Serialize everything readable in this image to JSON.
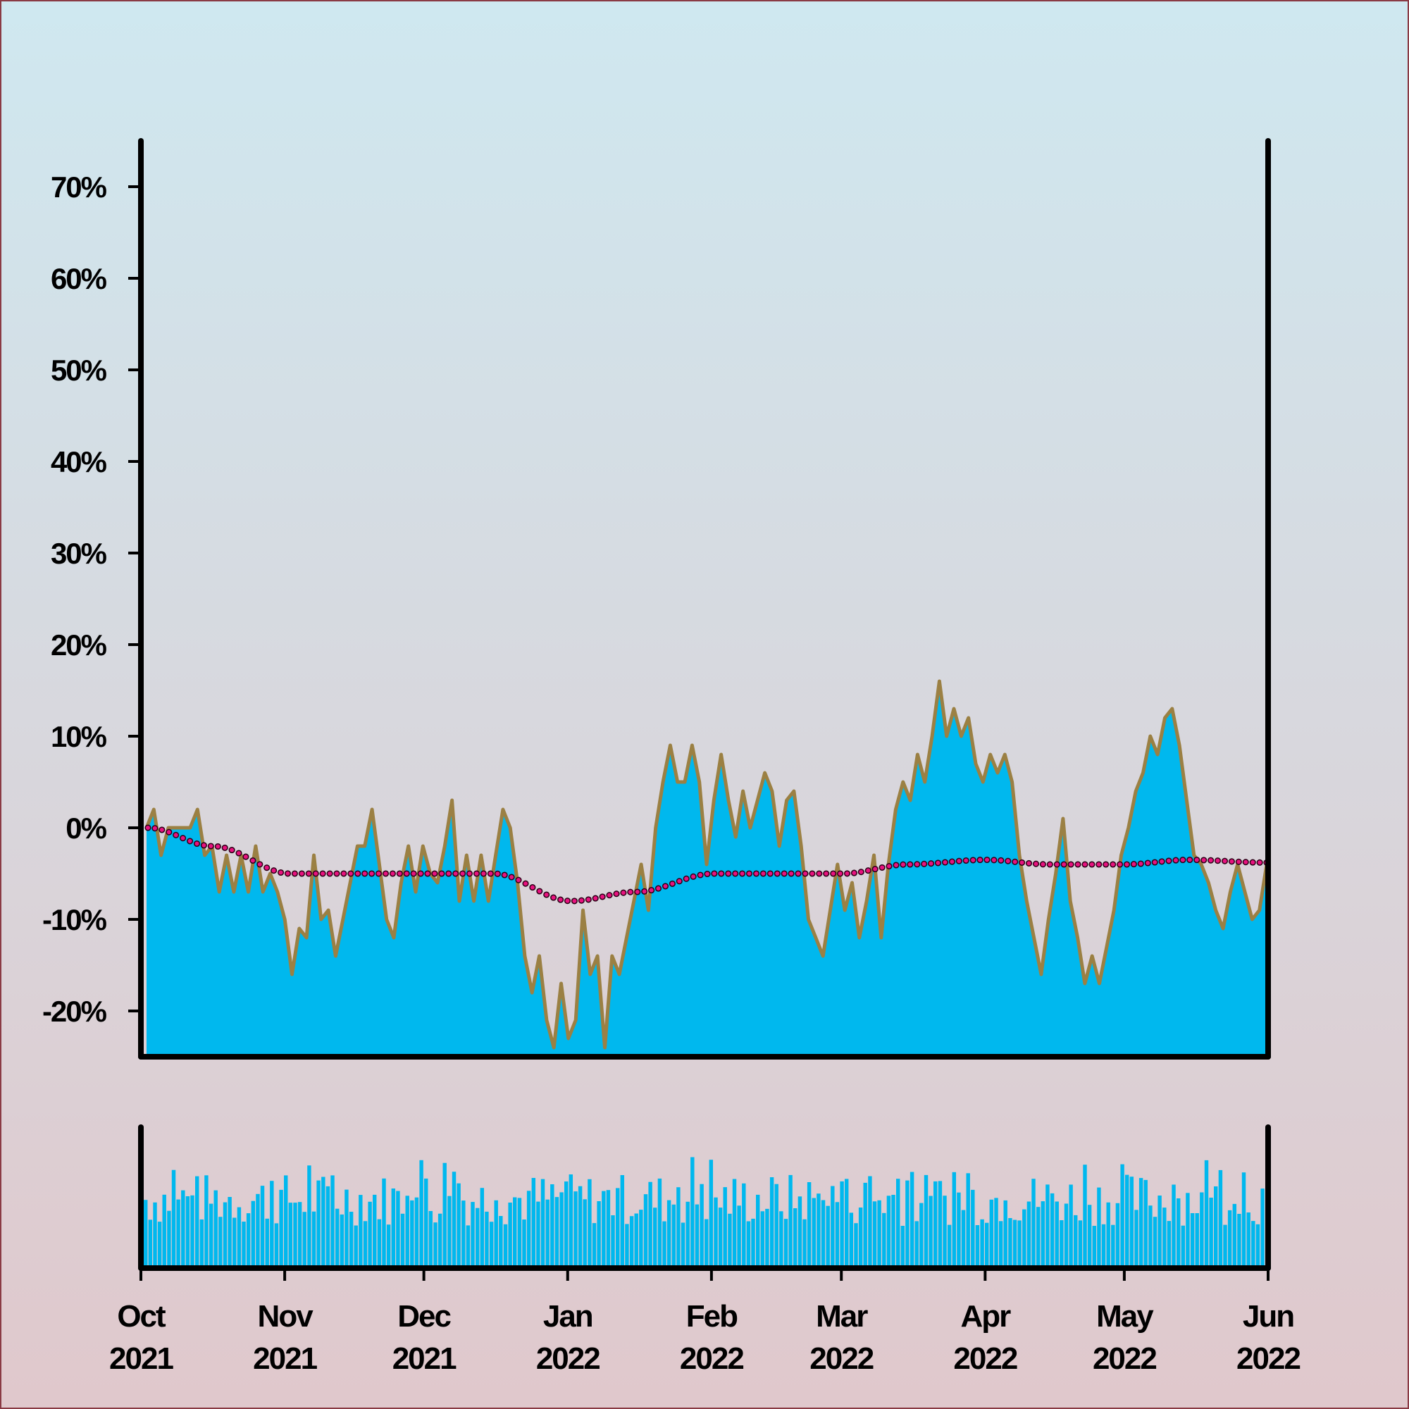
{
  "colors": {
    "background_top": "#cfe8f0",
    "background_bottom": "#e0c8cc",
    "area_fill": "#00b8ee",
    "price_line": "#9b8043",
    "trend_dots": "#e8127f",
    "axes": "#000000",
    "volume_bars": "#00b8ee",
    "frame_border": "#8a3a44"
  },
  "chart_data": {
    "type": "area",
    "title": "",
    "xlabel": "",
    "ylabel": "",
    "x_range": [
      "2021-10-01",
      "2022-06-01"
    ],
    "ylim": [
      -25,
      75
    ],
    "y_ticks": [
      {
        "value": 70,
        "label": "70%"
      },
      {
        "value": 60,
        "label": "60%"
      },
      {
        "value": 50,
        "label": "50%"
      },
      {
        "value": 40,
        "label": "40%"
      },
      {
        "value": 30,
        "label": "30%"
      },
      {
        "value": 20,
        "label": "20%"
      },
      {
        "value": 10,
        "label": "10%"
      },
      {
        "value": 0,
        "label": "0%"
      },
      {
        "value": -10,
        "label": "-10%"
      },
      {
        "value": -20,
        "label": "-20%"
      }
    ],
    "x_ticks": [
      {
        "date": "2021-10-01",
        "month": "Oct",
        "year": "2021"
      },
      {
        "date": "2021-11-01",
        "month": "Nov",
        "year": "2021"
      },
      {
        "date": "2021-12-01",
        "month": "Dec",
        "year": "2021"
      },
      {
        "date": "2022-01-01",
        "month": "Jan",
        "year": "2022"
      },
      {
        "date": "2022-02-01",
        "month": "Feb",
        "year": "2022"
      },
      {
        "date": "2022-03-01",
        "month": "Mar",
        "year": "2022"
      },
      {
        "date": "2022-04-01",
        "month": "Apr",
        "year": "2022"
      },
      {
        "date": "2022-05-01",
        "month": "May",
        "year": "2022"
      },
      {
        "date": "2022-06-01",
        "month": "Jun",
        "year": "2022"
      }
    ],
    "grid": false,
    "series": [
      {
        "type": "area",
        "points": [
          [
            "2021-10-01",
            0
          ],
          [
            "2021-10-02",
            2
          ],
          [
            "2021-10-03",
            -3
          ],
          [
            "2021-10-05",
            0
          ],
          [
            "2021-10-08",
            0
          ],
          [
            "2021-10-10",
            2
          ],
          [
            "2021-10-12",
            -3
          ],
          [
            "2021-10-14",
            -2
          ],
          [
            "2021-10-16",
            -7
          ],
          [
            "2021-10-18",
            -3
          ],
          [
            "2021-10-20",
            -7
          ],
          [
            "2021-10-22",
            -3
          ],
          [
            "2021-10-24",
            -7
          ],
          [
            "2021-10-26",
            -2
          ],
          [
            "2021-10-28",
            -7
          ],
          [
            "2021-10-30",
            -5
          ],
          [
            "2021-11-01",
            -7
          ],
          [
            "2021-11-03",
            -10
          ],
          [
            "2021-11-05",
            -16
          ],
          [
            "2021-11-07",
            -11
          ],
          [
            "2021-11-09",
            -12
          ],
          [
            "2021-11-11",
            -3
          ],
          [
            "2021-11-13",
            -10
          ],
          [
            "2021-11-15",
            -9
          ],
          [
            "2021-11-17",
            -14
          ],
          [
            "2021-11-19",
            -10
          ],
          [
            "2021-11-21",
            -6
          ],
          [
            "2021-11-23",
            -2
          ],
          [
            "2021-11-25",
            -2
          ],
          [
            "2021-11-26",
            2
          ],
          [
            "2021-11-28",
            -4
          ],
          [
            "2021-11-30",
            -10
          ],
          [
            "2021-12-02",
            -12
          ],
          [
            "2021-12-04",
            -6
          ],
          [
            "2021-12-06",
            -2
          ],
          [
            "2021-12-08",
            -7
          ],
          [
            "2021-12-10",
            -2
          ],
          [
            "2021-12-12",
            -5
          ],
          [
            "2021-12-14",
            -6
          ],
          [
            "2021-12-16",
            -2
          ],
          [
            "2021-12-18",
            3
          ],
          [
            "2021-12-20",
            -8
          ],
          [
            "2021-12-22",
            -3
          ],
          [
            "2021-12-24",
            -8
          ],
          [
            "2021-12-26",
            -3
          ],
          [
            "2021-12-28",
            -8
          ],
          [
            "2021-12-30",
            -3
          ],
          [
            "2022-01-01",
            2
          ],
          [
            "2022-01-03",
            0
          ],
          [
            "2022-01-05",
            -6
          ],
          [
            "2022-01-07",
            -14
          ],
          [
            "2022-01-09",
            -18
          ],
          [
            "2022-01-11",
            -14
          ],
          [
            "2022-01-13",
            -21
          ],
          [
            "2022-01-15",
            -24
          ],
          [
            "2022-01-17",
            -17
          ],
          [
            "2022-01-19",
            -23
          ],
          [
            "2022-01-21",
            -21
          ],
          [
            "2022-01-23",
            -9
          ],
          [
            "2022-01-25",
            -16
          ],
          [
            "2022-01-27",
            -14
          ],
          [
            "2022-01-29",
            -24
          ],
          [
            "2022-01-31",
            -14
          ],
          [
            "2022-02-02",
            -16
          ],
          [
            "2022-02-04",
            -12
          ]
        ],
        "dense_values": [
          0,
          2,
          -3,
          0,
          0,
          0,
          0,
          2,
          -3,
          -2,
          -7,
          -3,
          -7,
          -3,
          -7,
          -2,
          -7,
          -5,
          -7,
          -10,
          -16,
          -11,
          -12,
          -3,
          -10,
          -9,
          -14,
          -10,
          -6,
          -2,
          -2,
          2,
          -4,
          -10,
          -12,
          -6,
          -2,
          -7,
          -2,
          -5,
          -6,
          -2,
          3,
          -8,
          -3,
          -8,
          -3,
          -8,
          -3,
          2,
          0,
          -6,
          -14,
          -18,
          -14,
          -21,
          -24,
          -17,
          -23,
          -21,
          -9,
          -16,
          -14,
          -24,
          -14,
          -16,
          -12,
          -8,
          -4,
          -9,
          0,
          5,
          9,
          5,
          5,
          9,
          5,
          -4,
          3,
          8,
          3,
          -1,
          4,
          0,
          3,
          6,
          4,
          -2,
          3,
          4,
          -2,
          -10,
          -12,
          -14,
          -9,
          -4,
          -9,
          -6,
          -12,
          -8,
          -3,
          -12,
          -4,
          2,
          5,
          3,
          8,
          5,
          10,
          16,
          10,
          13,
          10,
          12,
          7,
          5,
          8,
          6,
          8,
          5,
          -3,
          -8,
          -12,
          -16,
          -10,
          -5,
          1,
          -8,
          -12,
          -17,
          -14,
          -17,
          -13,
          -9,
          -3,
          0,
          4,
          6,
          10,
          8,
          12,
          13,
          9,
          3,
          -3,
          -4,
          -6,
          -9,
          -11,
          -7,
          -4,
          -7,
          -10,
          -9,
          -4
        ]
      }
    ],
    "trend_line": {
      "style": "dotted",
      "points": [
        [
          "2021-10-01",
          0
        ],
        [
          "2021-10-15",
          -2
        ],
        [
          "2021-11-01",
          -5
        ],
        [
          "2021-11-15",
          -5
        ],
        [
          "2021-12-01",
          -5
        ],
        [
          "2021-12-15",
          -5
        ],
        [
          "2022-01-01",
          -8
        ],
        [
          "2022-01-15",
          -7
        ],
        [
          "2022-02-01",
          -5
        ],
        [
          "2022-02-15",
          -5
        ],
        [
          "2022-03-01",
          -5
        ],
        [
          "2022-03-15",
          -4
        ],
        [
          "2022-04-01",
          -3.5
        ],
        [
          "2022-04-15",
          -4
        ],
        [
          "2022-05-01",
          -4
        ],
        [
          "2022-05-15",
          -3.5
        ],
        [
          "2022-06-01",
          -3.8
        ]
      ]
    },
    "volume": {
      "type": "bar",
      "note_count": 240
    }
  }
}
